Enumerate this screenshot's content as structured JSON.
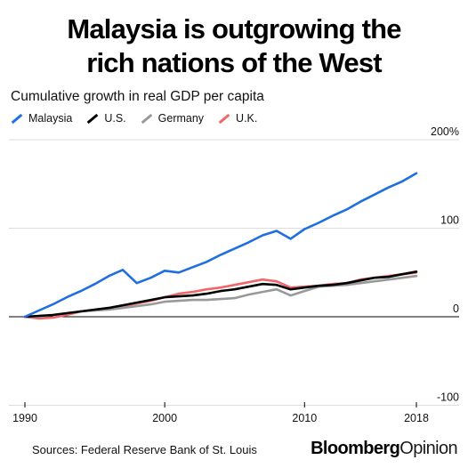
{
  "header": {
    "title_line1": "Malaysia is outgrowing the",
    "title_line2": "rich nations of the West",
    "subtitle": "Cumulative growth in real GDP per capita"
  },
  "footer": {
    "sources": "Sources: Federal Reserve Bank of St. Louis",
    "brand_part1": "Bloomberg",
    "brand_part2": "Opinion"
  },
  "chart_data": {
    "type": "line",
    "title": "Malaysia is outgrowing the rich nations of the West",
    "subtitle": "Cumulative growth in real GDP per capita",
    "xlabel": "",
    "ylabel": "",
    "xlim": [
      1990,
      2018
    ],
    "ylim": [
      -100,
      200
    ],
    "x_ticks": [
      "1990",
      "2000",
      "2010",
      "2018"
    ],
    "y_ticks": [
      {
        "value": 200,
        "label": "200%"
      },
      {
        "value": 100,
        "label": "100"
      },
      {
        "value": 0,
        "label": "0"
      },
      {
        "value": -100,
        "label": "-100"
      }
    ],
    "legend_position": "top-left",
    "grid": "horizontal",
    "x": [
      1990,
      1991,
      1992,
      1993,
      1994,
      1995,
      1996,
      1997,
      1998,
      1999,
      2000,
      2001,
      2002,
      2003,
      2004,
      2005,
      2006,
      2007,
      2008,
      2009,
      2010,
      2011,
      2012,
      2013,
      2014,
      2015,
      2016,
      2017,
      2018
    ],
    "series": [
      {
        "name": "Malaysia",
        "color": "#1f6fe0",
        "values": [
          0,
          7,
          14,
          22,
          29,
          37,
          46,
          53,
          38,
          44,
          52,
          50,
          56,
          62,
          70,
          77,
          84,
          92,
          97,
          88,
          99,
          106,
          114,
          121,
          130,
          138,
          146,
          153,
          162
        ]
      },
      {
        "name": "U.S.",
        "color": "#000000",
        "values": [
          0,
          1,
          2,
          4,
          6,
          8,
          10,
          13,
          16,
          19,
          22,
          23,
          24,
          26,
          29,
          31,
          34,
          37,
          36,
          31,
          33,
          35,
          36,
          38,
          41,
          44,
          45,
          48,
          51
        ]
      },
      {
        "name": "Germany",
        "color": "#999999",
        "values": [
          0,
          0,
          2,
          4,
          6,
          7,
          8,
          10,
          12,
          14,
          17,
          18,
          19,
          19,
          20,
          21,
          25,
          28,
          31,
          24,
          29,
          34,
          35,
          36,
          38,
          40,
          42,
          44,
          46
        ]
      },
      {
        "name": "U.K.",
        "color": "#f0666b",
        "values": [
          0,
          -2,
          -1,
          2,
          6,
          8,
          10,
          12,
          15,
          18,
          22,
          26,
          28,
          31,
          33,
          36,
          39,
          42,
          40,
          33,
          34,
          35,
          37,
          38,
          42,
          44,
          46,
          48,
          50
        ]
      }
    ]
  }
}
